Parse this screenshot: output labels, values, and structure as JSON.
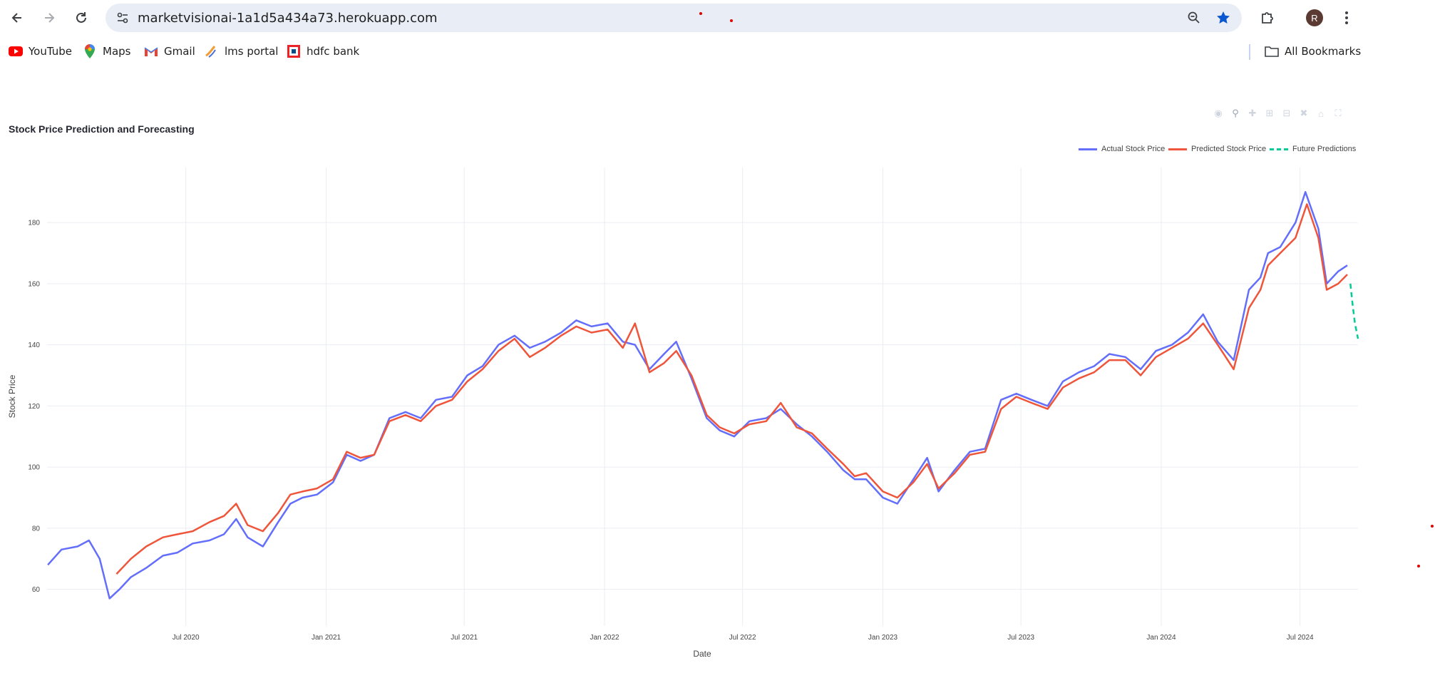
{
  "browser": {
    "url": "marketvisionai-1a1d5a434a73.herokuapp.com",
    "avatar_letter": "R",
    "bookmarks": [
      {
        "label": "YouTube",
        "icon": "youtube-icon"
      },
      {
        "label": "Maps",
        "icon": "maps-icon"
      },
      {
        "label": "Gmail",
        "icon": "gmail-icon"
      },
      {
        "label": "lms portal",
        "icon": "lms-icon"
      },
      {
        "label": "hdfc bank",
        "icon": "hdfc-icon"
      }
    ],
    "all_bookmarks": "All Bookmarks",
    "accent": "#0b57d0"
  },
  "chart_data": {
    "type": "line",
    "title": "Stock Price Prediction and Forecasting",
    "xlabel": "Date",
    "ylabel": "Stock Price",
    "xlim": [
      "2020-01-01",
      "2024-09-15"
    ],
    "ylim": [
      48,
      198
    ],
    "x_ticks": [
      "Jul 2020",
      "Jan 2021",
      "Jul 2021",
      "Jan 2022",
      "Jul 2022",
      "Jan 2023",
      "Jul 2023",
      "Jan 2024",
      "Jul 2024"
    ],
    "x_tick_dates": [
      "2020-07-01",
      "2021-01-01",
      "2021-07-01",
      "2022-01-01",
      "2022-07-01",
      "2023-01-01",
      "2023-07-01",
      "2024-01-01",
      "2024-07-01"
    ],
    "y_ticks": [
      60,
      80,
      100,
      120,
      140,
      160,
      180
    ],
    "grid": true,
    "legend_position": "top-right",
    "series": [
      {
        "name": "Actual Stock Price",
        "color": "#636efa",
        "dash": "solid",
        "points": [
          [
            "2020-01-02",
            68
          ],
          [
            "2020-01-20",
            73
          ],
          [
            "2020-02-10",
            74
          ],
          [
            "2020-02-25",
            76
          ],
          [
            "2020-03-10",
            70
          ],
          [
            "2020-03-23",
            57
          ],
          [
            "2020-04-05",
            60
          ],
          [
            "2020-04-20",
            64
          ],
          [
            "2020-05-10",
            67
          ],
          [
            "2020-06-01",
            71
          ],
          [
            "2020-06-20",
            72
          ],
          [
            "2020-07-10",
            75
          ],
          [
            "2020-08-01",
            76
          ],
          [
            "2020-08-20",
            78
          ],
          [
            "2020-09-05",
            83
          ],
          [
            "2020-09-20",
            77
          ],
          [
            "2020-10-10",
            74
          ],
          [
            "2020-10-30",
            82
          ],
          [
            "2020-11-15",
            88
          ],
          [
            "2020-12-01",
            90
          ],
          [
            "2020-12-20",
            91
          ],
          [
            "2021-01-10",
            95
          ],
          [
            "2021-01-28",
            104
          ],
          [
            "2021-02-15",
            102
          ],
          [
            "2021-03-05",
            104
          ],
          [
            "2021-03-25",
            116
          ],
          [
            "2021-04-15",
            118
          ],
          [
            "2021-05-05",
            116
          ],
          [
            "2021-05-25",
            122
          ],
          [
            "2021-06-15",
            123
          ],
          [
            "2021-07-05",
            130
          ],
          [
            "2021-07-25",
            133
          ],
          [
            "2021-08-15",
            140
          ],
          [
            "2021-09-05",
            143
          ],
          [
            "2021-09-25",
            139
          ],
          [
            "2021-10-15",
            141
          ],
          [
            "2021-11-05",
            144
          ],
          [
            "2021-11-25",
            148
          ],
          [
            "2021-12-15",
            146
          ],
          [
            "2022-01-05",
            147
          ],
          [
            "2022-01-25",
            141
          ],
          [
            "2022-02-10",
            140
          ],
          [
            "2022-03-01",
            132
          ],
          [
            "2022-03-20",
            137
          ],
          [
            "2022-04-05",
            141
          ],
          [
            "2022-04-25",
            129
          ],
          [
            "2022-05-15",
            116
          ],
          [
            "2022-06-01",
            112
          ],
          [
            "2022-06-20",
            110
          ],
          [
            "2022-07-10",
            115
          ],
          [
            "2022-08-01",
            116
          ],
          [
            "2022-08-20",
            119
          ],
          [
            "2022-09-10",
            114
          ],
          [
            "2022-09-30",
            110
          ],
          [
            "2022-10-20",
            105
          ],
          [
            "2022-11-10",
            99
          ],
          [
            "2022-11-25",
            96
          ],
          [
            "2022-12-10",
            96
          ],
          [
            "2023-01-01",
            90
          ],
          [
            "2023-01-20",
            88
          ],
          [
            "2023-02-10",
            96
          ],
          [
            "2023-02-28",
            103
          ],
          [
            "2023-03-15",
            92
          ],
          [
            "2023-04-05",
            99
          ],
          [
            "2023-04-25",
            105
          ],
          [
            "2023-05-15",
            106
          ],
          [
            "2023-06-05",
            122
          ],
          [
            "2023-06-25",
            124
          ],
          [
            "2023-07-15",
            122
          ],
          [
            "2023-08-05",
            120
          ],
          [
            "2023-08-25",
            128
          ],
          [
            "2023-09-15",
            131
          ],
          [
            "2023-10-05",
            133
          ],
          [
            "2023-10-25",
            137
          ],
          [
            "2023-11-15",
            136
          ],
          [
            "2023-12-05",
            132
          ],
          [
            "2023-12-25",
            138
          ],
          [
            "2024-01-15",
            140
          ],
          [
            "2024-02-05",
            144
          ],
          [
            "2024-02-25",
            150
          ],
          [
            "2024-03-15",
            141
          ],
          [
            "2024-04-05",
            135
          ],
          [
            "2024-04-25",
            158
          ],
          [
            "2024-05-10",
            162
          ],
          [
            "2024-05-20",
            170
          ],
          [
            "2024-06-05",
            172
          ],
          [
            "2024-06-25",
            180
          ],
          [
            "2024-07-08",
            190
          ],
          [
            "2024-07-25",
            178
          ],
          [
            "2024-08-05",
            160
          ],
          [
            "2024-08-20",
            164
          ],
          [
            "2024-09-01",
            166
          ]
        ]
      },
      {
        "name": "Predicted Stock Price",
        "color": "#ef553b",
        "dash": "solid",
        "points": [
          [
            "2020-04-01",
            65
          ],
          [
            "2020-04-20",
            70
          ],
          [
            "2020-05-10",
            74
          ],
          [
            "2020-06-01",
            77
          ],
          [
            "2020-06-20",
            78
          ],
          [
            "2020-07-10",
            79
          ],
          [
            "2020-08-01",
            82
          ],
          [
            "2020-08-20",
            84
          ],
          [
            "2020-09-05",
            88
          ],
          [
            "2020-09-20",
            81
          ],
          [
            "2020-10-10",
            79
          ],
          [
            "2020-10-30",
            85
          ],
          [
            "2020-11-15",
            91
          ],
          [
            "2020-12-01",
            92
          ],
          [
            "2020-12-20",
            93
          ],
          [
            "2021-01-10",
            96
          ],
          [
            "2021-01-28",
            105
          ],
          [
            "2021-02-15",
            103
          ],
          [
            "2021-03-05",
            104
          ],
          [
            "2021-03-25",
            115
          ],
          [
            "2021-04-15",
            117
          ],
          [
            "2021-05-05",
            115
          ],
          [
            "2021-05-25",
            120
          ],
          [
            "2021-06-15",
            122
          ],
          [
            "2021-07-05",
            128
          ],
          [
            "2021-07-25",
            132
          ],
          [
            "2021-08-15",
            138
          ],
          [
            "2021-09-05",
            142
          ],
          [
            "2021-09-25",
            136
          ],
          [
            "2021-10-15",
            139
          ],
          [
            "2021-11-05",
            143
          ],
          [
            "2021-11-25",
            146
          ],
          [
            "2021-12-15",
            144
          ],
          [
            "2022-01-05",
            145
          ],
          [
            "2022-01-25",
            139
          ],
          [
            "2022-02-10",
            147
          ],
          [
            "2022-03-01",
            131
          ],
          [
            "2022-03-20",
            134
          ],
          [
            "2022-04-05",
            138
          ],
          [
            "2022-04-25",
            130
          ],
          [
            "2022-05-15",
            117
          ],
          [
            "2022-06-01",
            113
          ],
          [
            "2022-06-20",
            111
          ],
          [
            "2022-07-10",
            114
          ],
          [
            "2022-08-01",
            115
          ],
          [
            "2022-08-20",
            121
          ],
          [
            "2022-09-10",
            113
          ],
          [
            "2022-09-30",
            111
          ],
          [
            "2022-10-20",
            106
          ],
          [
            "2022-11-10",
            101
          ],
          [
            "2022-11-25",
            97
          ],
          [
            "2022-12-10",
            98
          ],
          [
            "2023-01-01",
            92
          ],
          [
            "2023-01-20",
            90
          ],
          [
            "2023-02-10",
            95
          ],
          [
            "2023-02-28",
            101
          ],
          [
            "2023-03-15",
            93
          ],
          [
            "2023-04-05",
            98
          ],
          [
            "2023-04-25",
            104
          ],
          [
            "2023-05-15",
            105
          ],
          [
            "2023-06-05",
            119
          ],
          [
            "2023-06-25",
            123
          ],
          [
            "2023-07-15",
            121
          ],
          [
            "2023-08-05",
            119
          ],
          [
            "2023-08-25",
            126
          ],
          [
            "2023-09-15",
            129
          ],
          [
            "2023-10-05",
            131
          ],
          [
            "2023-10-25",
            135
          ],
          [
            "2023-11-15",
            135
          ],
          [
            "2023-12-05",
            130
          ],
          [
            "2023-12-25",
            136
          ],
          [
            "2024-01-15",
            139
          ],
          [
            "2024-02-05",
            142
          ],
          [
            "2024-02-25",
            147
          ],
          [
            "2024-03-15",
            140
          ],
          [
            "2024-04-05",
            132
          ],
          [
            "2024-04-25",
            152
          ],
          [
            "2024-05-10",
            158
          ],
          [
            "2024-05-20",
            166
          ],
          [
            "2024-06-05",
            170
          ],
          [
            "2024-06-25",
            175
          ],
          [
            "2024-07-10",
            186
          ],
          [
            "2024-07-25",
            175
          ],
          [
            "2024-08-05",
            158
          ],
          [
            "2024-08-20",
            160
          ],
          [
            "2024-09-01",
            163
          ]
        ]
      },
      {
        "name": "Future Predictions",
        "color": "#00cc96",
        "dash": "dash",
        "points": [
          [
            "2024-09-05",
            160
          ],
          [
            "2024-09-08",
            153
          ],
          [
            "2024-09-11",
            147
          ],
          [
            "2024-09-15",
            142
          ]
        ]
      }
    ]
  },
  "modebar_icons": [
    "camera-icon",
    "zoom-icon",
    "pan-icon",
    "zoom-in-icon",
    "zoom-out-icon",
    "autoscale-icon",
    "reset-axes-icon",
    "fullscreen-icon"
  ]
}
